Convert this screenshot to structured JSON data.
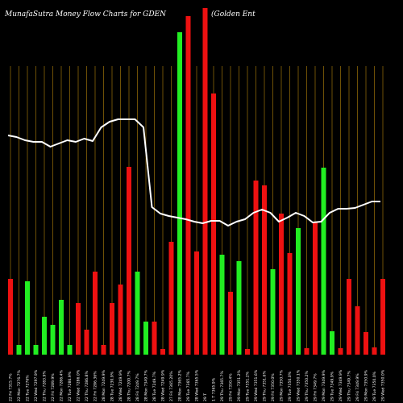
{
  "chart_data": {
    "type": "bar",
    "title": "MunafaSutra  Money Flow  Charts for GDEN",
    "subtitle": "(Golden  Ent",
    "colors": {
      "background": "#000000",
      "up": "#22ee22",
      "down": "#ee1111",
      "line": "#ffffff",
      "grid": "#b8860b"
    },
    "categories": [
      "22 Fri 7315.7%",
      "22 Mon 7276.7%",
      "22 Tue 7276%",
      "22 Wed 7297.9%",
      "22 Thu 7283.9%",
      "22 Fri 7289.9%",
      "22 Mon 7286.4%",
      "22 Tue 7286.9%",
      "22 Wed 7286.0%",
      "22 Thu 7286.8%",
      "22 Fri 7286.36%",
      "28 Mon 7249.9%",
      "28 Tue 7230.9%",
      "28 Wed 7249.9%",
      "28 Thu 7200.7%",
      "28 Fri 7249.7%",
      "28 Mon 7349.7%",
      "28 Tue 7249.7%",
      "28 Wed 7249.9%",
      "27 Fri 7365.20%",
      "28 Mon 7365.2%",
      "29 Tue 7365.7%",
      "28 Wed 7365.5%",
      "29 T",
      "1 T 7365.9%",
      "29 Thu 7365.7%",
      "29 Fri 7350.4%",
      "29 Mon 7351.2%",
      "29 Tue 7351.2%",
      "29 Wed 7351.6%",
      "29 Thu 7351.6%",
      "29 Fri 7350.0%",
      "29 Mon 7350.7%",
      "29 Tue 7350.0%",
      "29 Wed 7350.1%",
      "29 Thu 7350.2%",
      "29 Fri 7349.7%",
      "29 Mon 7349.9%",
      "29 Tue 7349.9%",
      "29 Wed 7349.9%",
      "29 Thu 7349.7%",
      "29 Fri 7349.9%",
      "29 Mon 7350.9%",
      "29 Tue 7350.0%",
      "29 Wed 7350.0%"
    ],
    "series": [
      {
        "colors": [
          "down",
          "up",
          "up",
          "up",
          "up",
          "up",
          "up",
          "up",
          "down",
          "down",
          "down",
          "down",
          "down",
          "down",
          "down",
          "up",
          "up",
          "down",
          "down",
          "down",
          "up",
          "down",
          "down",
          "down",
          "down",
          "up",
          "down",
          "up",
          "down",
          "down",
          "down",
          "up",
          "down",
          "down",
          "up",
          "down",
          "down",
          "up",
          "up",
          "down",
          "down",
          "down",
          "down",
          "down",
          "down"
        ],
        "values": [
          94,
          12,
          91,
          12,
          47,
          37,
          68,
          12,
          64,
          31,
          103,
          12,
          64,
          87,
          233,
          103,
          41,
          41,
          7,
          140,
          400,
          420,
          128,
          430,
          324,
          124,
          78,
          116,
          7,
          216,
          210,
          106,
          175,
          126,
          157,
          8,
          164,
          232,
          29,
          8,
          94,
          60,
          28,
          9,
          94
        ]
      }
    ],
    "line": [
      272,
      270,
      266,
      264,
      264,
      258,
      262,
      266,
      264,
      268,
      265,
      282,
      289,
      292,
      292,
      292,
      282,
      183,
      175,
      172,
      170,
      168,
      165,
      163,
      166,
      166,
      160,
      165,
      168,
      176,
      180,
      176,
      165,
      170,
      176,
      172,
      164,
      165,
      176,
      181,
      181,
      182,
      186,
      190,
      190
    ],
    "ylim": [
      0,
      440
    ],
    "grid": true
  }
}
